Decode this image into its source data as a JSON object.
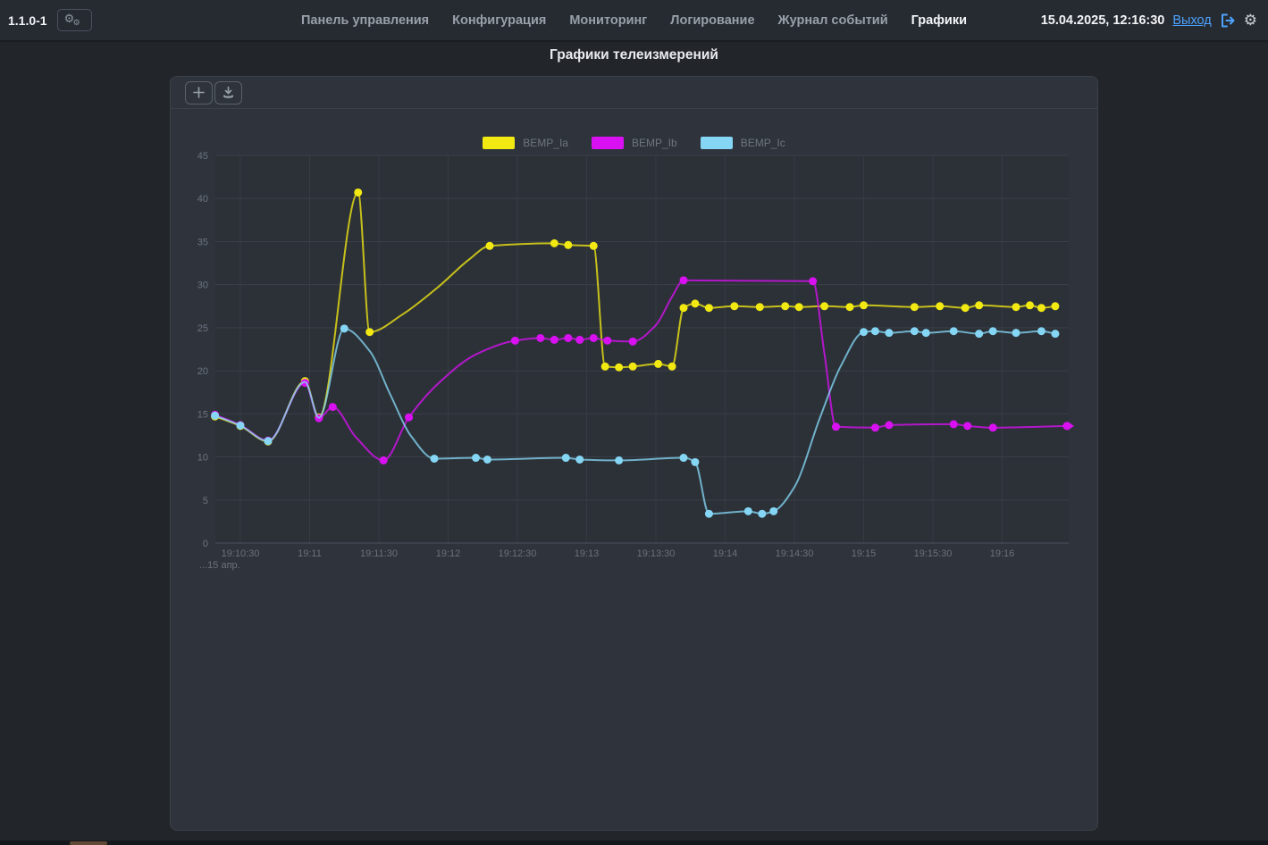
{
  "app": {
    "version": "1.1.0-1"
  },
  "topbar": {
    "nav": [
      {
        "label": "Панель управления",
        "active": false
      },
      {
        "label": "Конфигурация",
        "active": false
      },
      {
        "label": "Мониторинг",
        "active": false
      },
      {
        "label": "Логирование",
        "active": false
      },
      {
        "label": "Журнал событий",
        "active": false
      },
      {
        "label": "Графики",
        "active": true
      }
    ],
    "datetime": "15.04.2025, 12:16:30",
    "logout_label": "Выход",
    "icons": [
      "gears-icon",
      "sign-out-icon",
      "gear-icon"
    ]
  },
  "page": {
    "title": "Графики телеизмерений"
  },
  "toolbar": {
    "buttons": [
      "zoom-plus",
      "export-download"
    ]
  },
  "theme": {
    "link_blue": "#4da3ff",
    "panel_bg": "#2f343c",
    "page_bg": "#22262b",
    "grid_color": "#3a3f48",
    "axis_text": "#6c7380"
  },
  "chart_data": {
    "type": "line",
    "title": "Графики телеизмерений",
    "legend_position": "top",
    "grid": true,
    "x_axis": {
      "time_base": "19:10:00",
      "tick_seconds": [
        30,
        60,
        90,
        120,
        150,
        180,
        210,
        240,
        270,
        300,
        330,
        360
      ],
      "tick_labels": [
        "19:10:30",
        "19:11",
        "19:11:30",
        "19:12",
        "19:12:30",
        "19:13",
        "19:13:30",
        "19:14",
        "19:14:30",
        "19:15",
        "19:15:30",
        "19:16"
      ],
      "label_below": "...15 апр."
    },
    "y_axis": {
      "min": 0,
      "max": 45,
      "step": 5,
      "ticks": [
        0,
        5,
        10,
        15,
        20,
        25,
        30,
        35,
        40,
        45
      ]
    },
    "point_format": "[seconds_after_19:10:00, value, has_marker(1|0)]",
    "series": [
      {
        "name": "BEMP_Ia",
        "color": "#f2e912",
        "points": [
          [
            19,
            14.7,
            1
          ],
          [
            30,
            13.6,
            1
          ],
          [
            42,
            11.8,
            1
          ],
          [
            58,
            18.8,
            1
          ],
          [
            64,
            14.6,
            1
          ],
          [
            81,
            40.7,
            1
          ],
          [
            86,
            24.5,
            1
          ],
          [
            100,
            26.5,
            0
          ],
          [
            116,
            29.8,
            0
          ],
          [
            129,
            32.9,
            0
          ],
          [
            138,
            34.5,
            1
          ],
          [
            166,
            34.8,
            1
          ],
          [
            172,
            34.6,
            1
          ],
          [
            183,
            34.5,
            1
          ],
          [
            188,
            20.5,
            1
          ],
          [
            194,
            20.4,
            1
          ],
          [
            200,
            20.5,
            1
          ],
          [
            211,
            20.8,
            1
          ],
          [
            217,
            20.5,
            1
          ],
          [
            222,
            27.3,
            1
          ],
          [
            227,
            27.8,
            1
          ],
          [
            233,
            27.3,
            1
          ],
          [
            244,
            27.5,
            1
          ],
          [
            255,
            27.4,
            1
          ],
          [
            266,
            27.5,
            1
          ],
          [
            272,
            27.4,
            1
          ],
          [
            283,
            27.5,
            1
          ],
          [
            294,
            27.4,
            1
          ],
          [
            300,
            27.6,
            1
          ],
          [
            322,
            27.4,
            1
          ],
          [
            333,
            27.5,
            1
          ],
          [
            344,
            27.3,
            1
          ],
          [
            350,
            27.6,
            1
          ],
          [
            366,
            27.4,
            1
          ],
          [
            372,
            27.6,
            1
          ],
          [
            377,
            27.3,
            1
          ],
          [
            383,
            27.5,
            1
          ]
        ]
      },
      {
        "name": "BEMP_Ib",
        "color": "#d911f2",
        "end_arrow": true,
        "points": [
          [
            19,
            14.9,
            1
          ],
          [
            30,
            13.7,
            1
          ],
          [
            42,
            11.9,
            1
          ],
          [
            58,
            18.6,
            1
          ],
          [
            64,
            14.5,
            1
          ],
          [
            70,
            15.8,
            1
          ],
          [
            80,
            12.3,
            0
          ],
          [
            92,
            9.6,
            1
          ],
          [
            103,
            14.6,
            1
          ],
          [
            116,
            18.6,
            0
          ],
          [
            132,
            21.9,
            0
          ],
          [
            149,
            23.5,
            1
          ],
          [
            160,
            23.8,
            1
          ],
          [
            166,
            23.6,
            1
          ],
          [
            172,
            23.8,
            1
          ],
          [
            177,
            23.6,
            1
          ],
          [
            183,
            23.8,
            1
          ],
          [
            189,
            23.5,
            1
          ],
          [
            200,
            23.4,
            1
          ],
          [
            210,
            25.3,
            0
          ],
          [
            217,
            28.6,
            0
          ],
          [
            222,
            30.5,
            1
          ],
          [
            278,
            30.4,
            1
          ],
          [
            283,
            22.0,
            0
          ],
          [
            288,
            13.5,
            1
          ],
          [
            305,
            13.4,
            1
          ],
          [
            311,
            13.7,
            1
          ],
          [
            339,
            13.8,
            1
          ],
          [
            345,
            13.6,
            1
          ],
          [
            356,
            13.4,
            1
          ],
          [
            388,
            13.6,
            1
          ]
        ]
      },
      {
        "name": "BEMP_Ic",
        "color": "#84d6f4",
        "points": [
          [
            19,
            14.8,
            1
          ],
          [
            30,
            13.65,
            1
          ],
          [
            42,
            11.85,
            1
          ],
          [
            58,
            18.7,
            0
          ],
          [
            64,
            14.55,
            0
          ],
          [
            75,
            24.9,
            1
          ],
          [
            86,
            22.3,
            0
          ],
          [
            95,
            17.2,
            0
          ],
          [
            104,
            12.4,
            0
          ],
          [
            114,
            9.8,
            1
          ],
          [
            132,
            9.9,
            1
          ],
          [
            137,
            9.7,
            1
          ],
          [
            171,
            9.9,
            1
          ],
          [
            177,
            9.7,
            1
          ],
          [
            194,
            9.6,
            1
          ],
          [
            222,
            9.9,
            1
          ],
          [
            227,
            9.4,
            1
          ],
          [
            233,
            3.4,
            1
          ],
          [
            250,
            3.7,
            1
          ],
          [
            256,
            3.4,
            1
          ],
          [
            261,
            3.7,
            1
          ],
          [
            270,
            6.5,
            0
          ],
          [
            281,
            14.5,
            0
          ],
          [
            290,
            20.5,
            0
          ],
          [
            300,
            24.5,
            1
          ],
          [
            305,
            24.6,
            1
          ],
          [
            311,
            24.4,
            1
          ],
          [
            322,
            24.6,
            1
          ],
          [
            327,
            24.4,
            1
          ],
          [
            339,
            24.6,
            1
          ],
          [
            350,
            24.3,
            1
          ],
          [
            356,
            24.6,
            1
          ],
          [
            366,
            24.4,
            1
          ],
          [
            377,
            24.6,
            1
          ],
          [
            383,
            24.3,
            1
          ]
        ]
      }
    ]
  }
}
